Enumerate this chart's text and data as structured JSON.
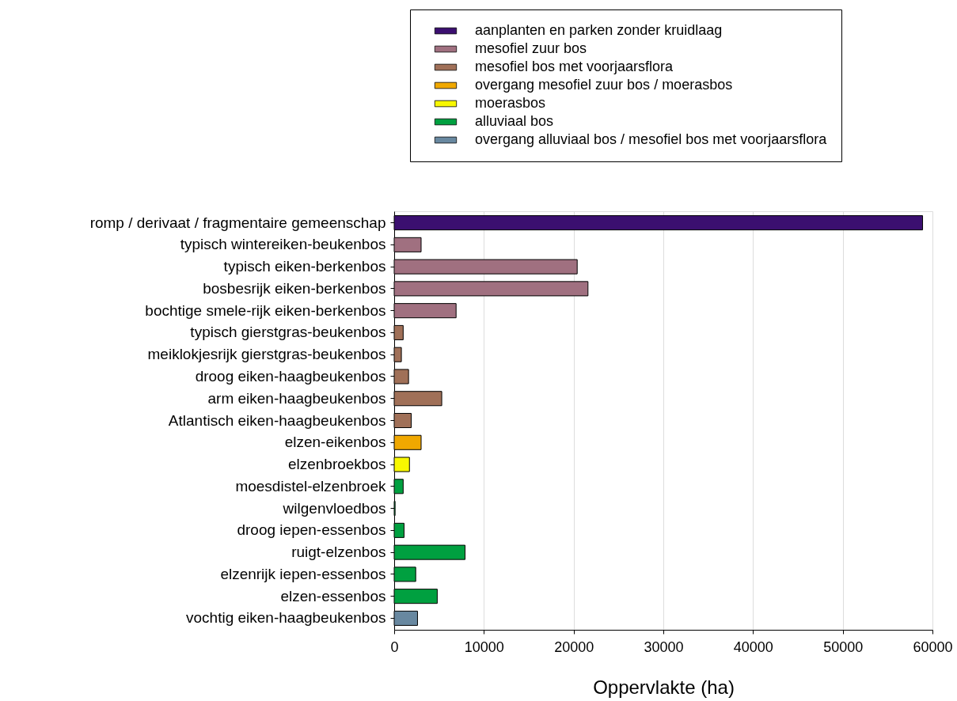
{
  "chart_data": {
    "type": "bar",
    "orientation": "horizontal",
    "xlabel": "Oppervlakte (ha)",
    "categories": [
      "romp / derivaat / fragmentaire gemeenschap",
      "typisch wintereiken-beukenbos",
      "typisch eiken-berkenbos",
      "bosbesrijk eiken-berkenbos",
      "bochtige smele-rijk eiken-berkenbos",
      "typisch gierstgras-beukenbos",
      "meiklokjesrijk gierstgras-beukenbos",
      "droog eiken-haagbeukenbos",
      "arm eiken-haagbeukenbos",
      "Atlantisch eiken-haagbeukenbos",
      "elzen-eikenbos",
      "elzenbroekbos",
      "moesdistel-elzenbroek",
      "wilgenvloedbos",
      "droog iepen-essenbos",
      "ruigt-elzenbos",
      "elzenrijk iepen-essenbos",
      "elzen-essenbos",
      "vochtig eiken-haagbeukenbos"
    ],
    "series": [
      {
        "name": "aanplanten en parken zonder kruidlaag",
        "color": "#3b0f70",
        "values": [
          58900,
          null,
          null,
          null,
          null,
          null,
          null,
          null,
          null,
          null,
          null,
          null,
          null,
          null,
          null,
          null,
          null,
          null,
          null
        ]
      },
      {
        "name": "mesofiel zuur bos",
        "color": "#a07080",
        "values": [
          null,
          3000,
          20400,
          21600,
          6900,
          null,
          null,
          null,
          null,
          null,
          null,
          null,
          null,
          null,
          null,
          null,
          null,
          null,
          null
        ]
      },
      {
        "name": "mesofiel bos met voorjaarsflora",
        "color": "#a07058",
        "values": [
          null,
          null,
          null,
          null,
          null,
          1000,
          800,
          1600,
          5300,
          1900,
          null,
          null,
          null,
          null,
          null,
          null,
          null,
          null,
          null
        ]
      },
      {
        "name": "overgang mesofiel zuur bos / moerasbos",
        "color": "#f0a800",
        "values": [
          null,
          null,
          null,
          null,
          null,
          null,
          null,
          null,
          null,
          null,
          3000,
          null,
          null,
          null,
          null,
          null,
          null,
          null,
          null
        ]
      },
      {
        "name": "moerasbos",
        "color": "#f8f800",
        "values": [
          null,
          null,
          null,
          null,
          null,
          null,
          null,
          null,
          null,
          null,
          null,
          1700,
          null,
          null,
          null,
          null,
          null,
          null,
          null
        ]
      },
      {
        "name": "alluviaal bos",
        "color": "#00a040",
        "values": [
          null,
          null,
          null,
          null,
          null,
          null,
          null,
          null,
          null,
          null,
          null,
          null,
          1000,
          100,
          1100,
          7900,
          2400,
          4800,
          null
        ]
      },
      {
        "name": "overgang alluviaal bos / mesofiel bos met voorjaarsflora",
        "color": "#6888a0",
        "values": [
          null,
          null,
          null,
          null,
          null,
          null,
          null,
          null,
          null,
          null,
          null,
          null,
          null,
          null,
          null,
          null,
          null,
          null,
          2600
        ]
      }
    ],
    "xlim": [
      0,
      60000
    ],
    "xticks": [
      0,
      10000,
      20000,
      30000,
      40000,
      50000,
      60000
    ],
    "grid": "x",
    "legend": "top"
  }
}
